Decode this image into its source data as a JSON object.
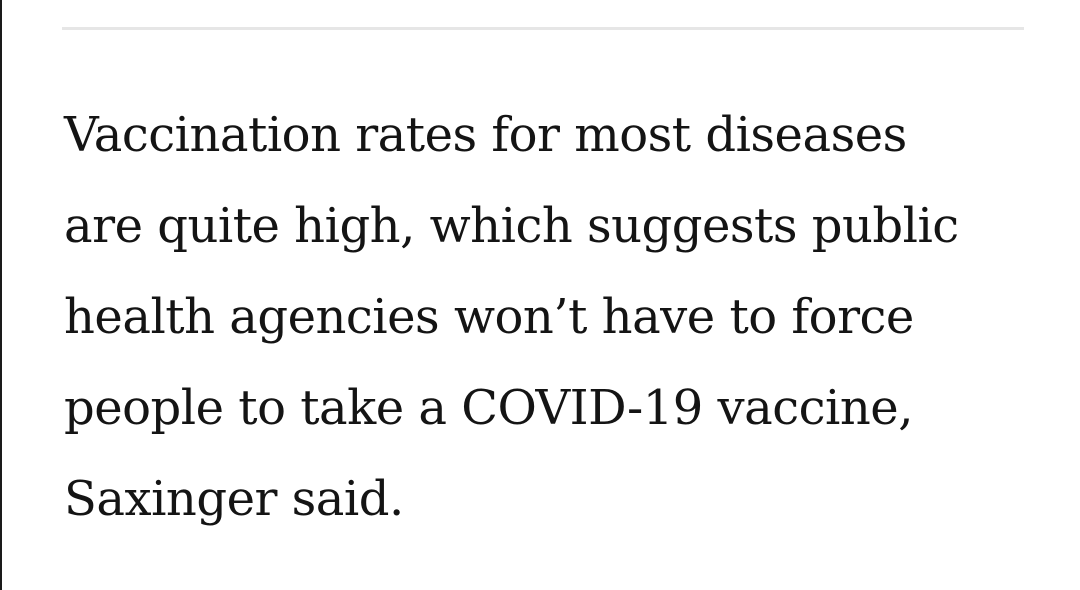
{
  "article": {
    "lines": [
      "Vaccination rates for most diseases",
      "are quite high, which suggests public",
      "health agencies won’t have to force",
      "people to take a COVID-19 vaccine,",
      "Saxinger said."
    ]
  }
}
